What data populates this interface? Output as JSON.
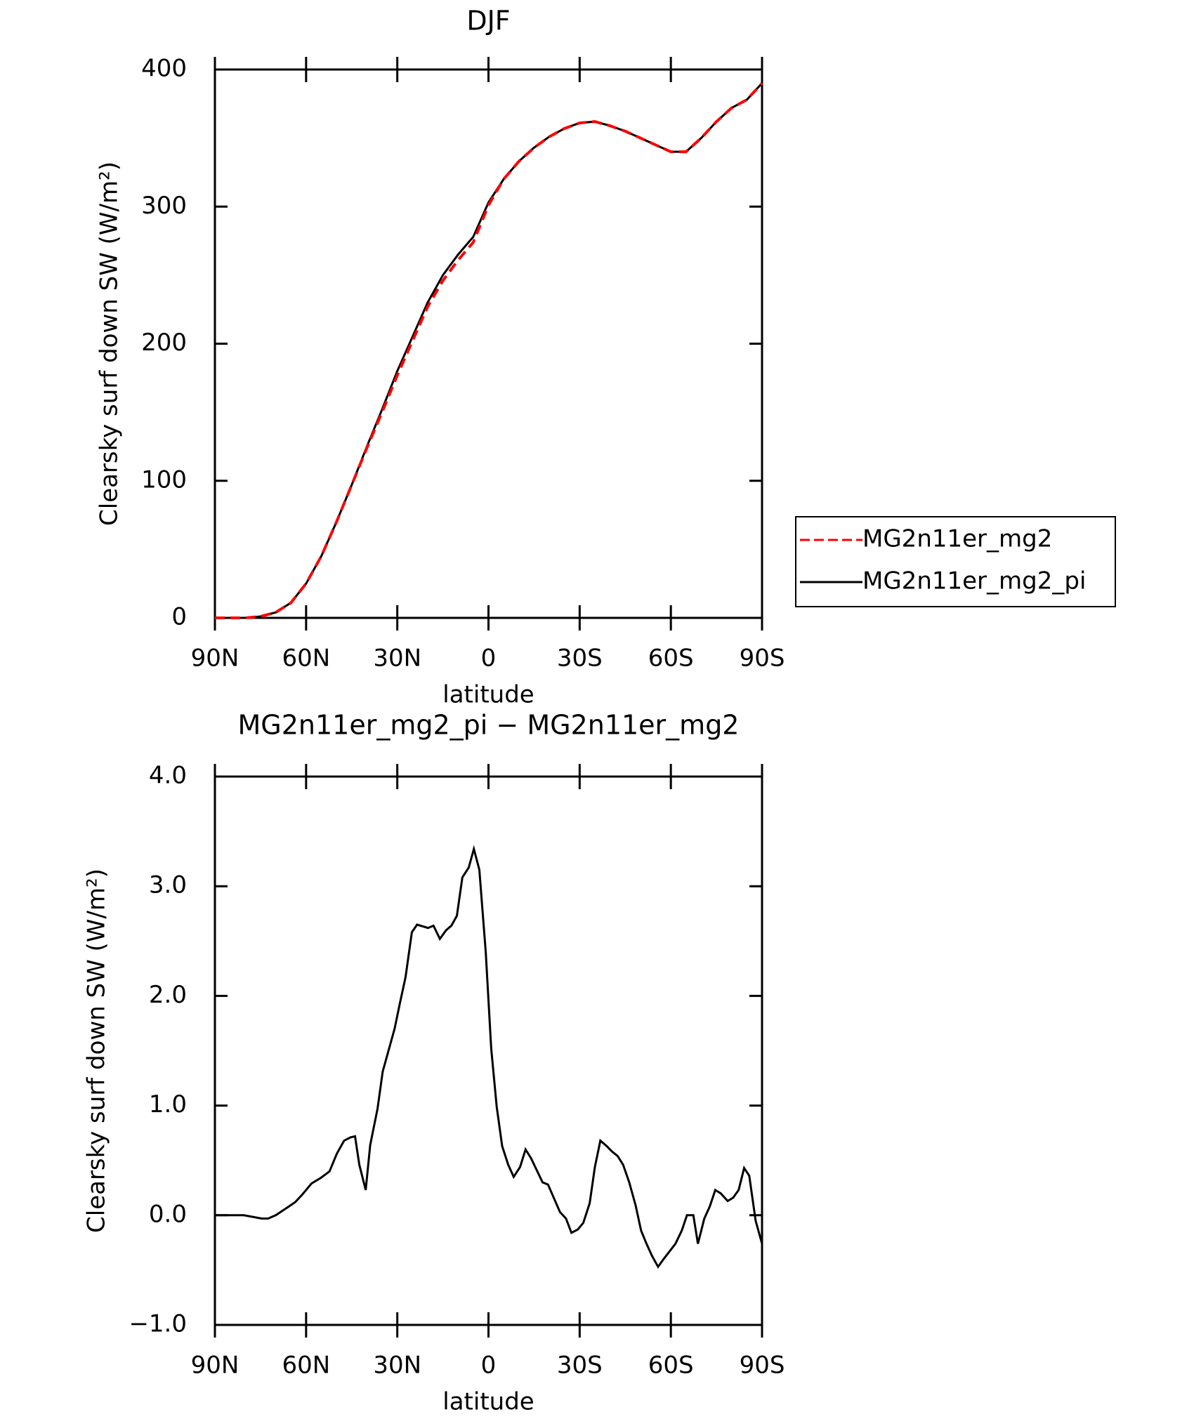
{
  "chart_data": [
    {
      "type": "line",
      "title": "DJF",
      "xlabel": "latitude",
      "ylabel": "Clearsky surf down SW (W/m²)",
      "xlim": [
        90,
        -90
      ],
      "xticks": [
        {
          "value": 90,
          "label": "90N"
        },
        {
          "value": 60,
          "label": "60N"
        },
        {
          "value": 30,
          "label": "30N"
        },
        0,
        {
          "value": -30,
          "label": "30S"
        },
        {
          "value": -60,
          "label": "60S"
        },
        {
          "value": -90,
          "label": "90S"
        }
      ],
      "ylim": [
        0,
        400
      ],
      "yticks": [
        0,
        100,
        200,
        300,
        400
      ],
      "legend": "outside right",
      "x": [
        90,
        85,
        80,
        75,
        70,
        65,
        60,
        55,
        50,
        45,
        40,
        35,
        30,
        25,
        20,
        15,
        10,
        5,
        0,
        -5,
        -10,
        -15,
        -20,
        -25,
        -30,
        -35,
        -40,
        -45,
        -50,
        -55,
        -60,
        -65,
        -70,
        -75,
        -80,
        -85,
        -90
      ],
      "series": [
        {
          "name": "MG2n11er_mg2",
          "color": "#ff0000",
          "line_style": "dashed",
          "values": [
            0,
            0,
            0,
            1,
            4,
            11,
            25,
            45,
            70,
            97,
            124,
            150,
            177,
            202,
            227,
            246,
            261,
            274,
            301,
            320,
            333,
            343,
            351,
            357,
            361,
            362,
            359,
            355,
            350,
            345,
            340,
            340,
            350,
            362,
            372,
            378,
            390
          ]
        },
        {
          "name": "MG2n11er_mg2_pi",
          "color": "#000000",
          "line_style": "solid",
          "values": [
            0,
            0,
            0,
            1,
            4,
            11,
            25,
            45,
            70,
            97,
            125,
            152,
            180,
            205,
            230,
            250,
            265,
            278,
            303,
            320,
            333,
            343,
            351,
            357,
            361,
            362,
            359,
            355,
            350,
            345,
            340,
            340,
            350,
            362,
            372,
            378,
            390
          ]
        }
      ]
    },
    {
      "type": "line",
      "title": "MG2n11er_mg2_pi − MG2n11er_mg2",
      "xlabel": "latitude",
      "ylabel": "Clearsky surf down SW (W/m²)",
      "xlim": [
        90,
        -90
      ],
      "xticks": [
        {
          "value": 90,
          "label": "90N"
        },
        {
          "value": 60,
          "label": "60N"
        },
        {
          "value": 30,
          "label": "30N"
        },
        0,
        {
          "value": -30,
          "label": "30S"
        },
        {
          "value": -60,
          "label": "60S"
        },
        {
          "value": -90,
          "label": "90S"
        }
      ],
      "ylim": [
        -1,
        4
      ],
      "yticks": [
        {
          "value": -1,
          "label": "−1.0"
        },
        {
          "value": 0,
          "label": "0.0"
        },
        {
          "value": 1,
          "label": "1.0"
        },
        {
          "value": 2,
          "label": "2.0"
        },
        {
          "value": 3,
          "label": "3.0"
        },
        {
          "value": 4,
          "label": "4.0"
        }
      ],
      "x": [
        90,
        80.5,
        74.6,
        72.5,
        70,
        66.2,
        63.6,
        61.2,
        58.2,
        55.2,
        52.3,
        49.9,
        47.5,
        45.4,
        43.9,
        42.5,
        40.4,
        38.9,
        36.5,
        34.8,
        30.9,
        29.1,
        27.3,
        25.2,
        23.5,
        19.9,
        18.1,
        16.0,
        13.9,
        12.2,
        10.4,
        8.6,
        6.5,
        4.8,
        3.0,
        0.9,
        -0.9,
        -2.7,
        -4.5,
        -6.5,
        -8.3,
        -10.4,
        -12.2,
        -14.0,
        -17.8,
        -19.6,
        -23.5,
        -25.5,
        -27.3,
        -29.4,
        -31.2,
        -33.3,
        -35.0,
        -36.8,
        -38.9,
        -40.7,
        -42.5,
        -44.3,
        -46.3,
        -48.4,
        -50.2,
        -52.0,
        -53.8,
        -55.8,
        -57.6,
        -61.5,
        -63.6,
        -65.3,
        -67.4,
        -68.9,
        -71.0,
        -72.8,
        -74.6,
        -76.4,
        -78.7,
        -80.5,
        -82.3,
        -84.1,
        -85.8,
        -87.9,
        -90.0
      ],
      "series": [
        {
          "name": "MG2n11er_mg2_pi − MG2n11er_mg2",
          "color": "#000000",
          "line_style": "solid",
          "values": [
            0,
            0,
            -0.03,
            -0.03,
            0,
            0.07,
            0.12,
            0.19,
            0.29,
            0.34,
            0.4,
            0.56,
            0.68,
            0.71,
            0.72,
            0.46,
            0.23,
            0.64,
            0.97,
            1.31,
            1.7,
            1.94,
            2.17,
            2.58,
            2.65,
            2.62,
            2.64,
            2.52,
            2.6,
            2.64,
            2.73,
            3.08,
            3.17,
            3.34,
            3.15,
            2.4,
            1.52,
            0.99,
            0.63,
            0.46,
            0.35,
            0.44,
            0.6,
            0.52,
            0.3,
            0.28,
            0.03,
            -0.03,
            -0.16,
            -0.13,
            -0.07,
            0.11,
            0.44,
            0.68,
            0.63,
            0.58,
            0.54,
            0.46,
            0.3,
            0.09,
            -0.14,
            -0.26,
            -0.37,
            -0.47,
            -0.4,
            -0.26,
            -0.14,
            0,
            0,
            -0.26,
            -0.03,
            0.08,
            0.23,
            0.2,
            0.13,
            0.16,
            0.23,
            0.43,
            0.36,
            -0.05,
            -0.26
          ]
        }
      ]
    }
  ]
}
